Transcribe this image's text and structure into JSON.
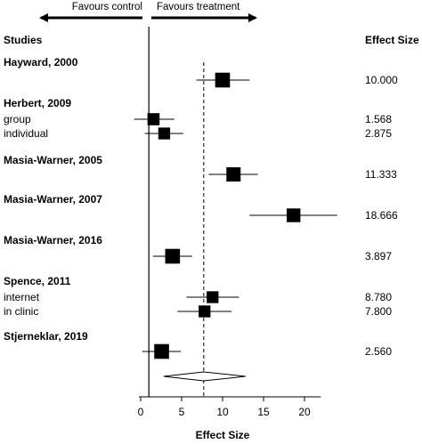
{
  "header": {
    "studies_label": "Studies",
    "effect_size_label": "Effect Size",
    "favours_control": "Favours control",
    "favours_treatment": "Favours treatment"
  },
  "chart_data": {
    "type": "forest",
    "xlabel": "Effect Size",
    "xlim": [
      -0.2,
      22
    ],
    "xticks": [
      0,
      5,
      10,
      15,
      20
    ],
    "null_line": 1,
    "pooled_estimate": 7.7,
    "pooled_ci": [
      2.8,
      12.8
    ],
    "studies": [
      {
        "name": "Hayward, 2000",
        "value_label": "10.000",
        "estimate": 10.0,
        "ci": [
          6.8,
          13.3
        ],
        "weight": 1.1
      },
      {
        "name": "Herbert, 2009",
        "subgroups": [
          {
            "name": "group",
            "value_label": "1.568",
            "estimate": 1.568,
            "ci": [
              -0.8,
              4.1
            ],
            "weight": 0.6
          },
          {
            "name": "individual",
            "value_label": "2.875",
            "estimate": 2.875,
            "ci": [
              0.5,
              5.2
            ],
            "weight": 0.55
          }
        ]
      },
      {
        "name": "Masia-Warner, 2005",
        "value_label": "11.333",
        "estimate": 11.333,
        "ci": [
          8.3,
          14.3
        ],
        "weight": 1.0
      },
      {
        "name": "Masia-Warner, 2007",
        "value_label": "18.666",
        "estimate": 18.666,
        "ci": [
          13.3,
          24.0
        ],
        "weight": 0.9
      },
      {
        "name": "Masia-Warner, 2016",
        "value_label": "3.897",
        "estimate": 3.897,
        "ci": [
          1.5,
          6.3
        ],
        "weight": 1.1
      },
      {
        "name": "Spence, 2011",
        "subgroups": [
          {
            "name": "internet",
            "value_label": "8.780",
            "estimate": 8.78,
            "ci": [
              5.6,
              12.0
            ],
            "weight": 0.55
          },
          {
            "name": "in clinic",
            "value_label": "7.800",
            "estimate": 7.8,
            "ci": [
              4.5,
              11.1
            ],
            "weight": 0.55
          }
        ]
      },
      {
        "name": "Stjerneklar, 2019",
        "value_label": "2.560",
        "estimate": 2.56,
        "ci": [
          0.2,
          4.9
        ],
        "weight": 1.1
      }
    ]
  }
}
